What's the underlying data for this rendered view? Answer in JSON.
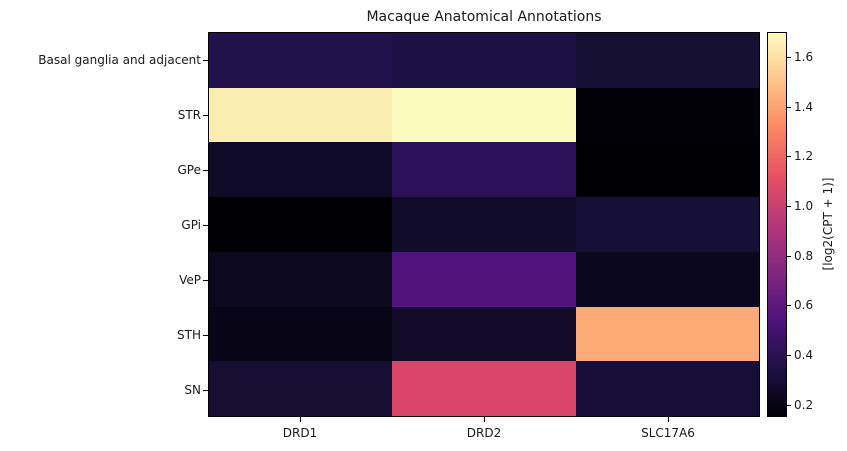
{
  "chart_data": {
    "type": "heatmap",
    "title": "Macaque Anatomical Annotations",
    "xlabel": "",
    "ylabel": "",
    "columns": [
      "DRD1",
      "DRD2",
      "SLC17A6"
    ],
    "rows": [
      "Basal ganglia and adjacent",
      "STR",
      "GPe",
      "GPi",
      "VeP",
      "STH",
      "SN"
    ],
    "values": [
      [
        0.38,
        0.34,
        0.28
      ],
      [
        1.62,
        1.68,
        0.16
      ],
      [
        0.24,
        0.42,
        0.15
      ],
      [
        0.15,
        0.3,
        0.32
      ],
      [
        0.22,
        0.55,
        0.22
      ],
      [
        0.2,
        0.27,
        1.42
      ],
      [
        0.28,
        1.05,
        0.3
      ]
    ],
    "cell_colors": [
      [
        "#21124c",
        "#1c1044",
        "#140f33"
      ],
      [
        "#f9edaf",
        "#fbfbbe",
        "#020108"
      ],
      [
        "#0f0b26",
        "#2b1158",
        "#000004"
      ],
      [
        "#000004",
        "#110c2a",
        "#160f38"
      ],
      [
        "#0c091f",
        "#52127c",
        "#0b081d"
      ],
      [
        "#080616",
        "#110b28",
        "#fcab76"
      ],
      [
        "#150e32",
        "#db476b",
        "#160e36"
      ]
    ],
    "colorbar": {
      "label": "[log2(CPT + 1)]",
      "range": [
        0.15,
        1.7
      ],
      "ticks": [
        0.2,
        0.4,
        0.6,
        0.8,
        1.0,
        1.2,
        1.4,
        1.6
      ],
      "colormap": "magma"
    }
  }
}
